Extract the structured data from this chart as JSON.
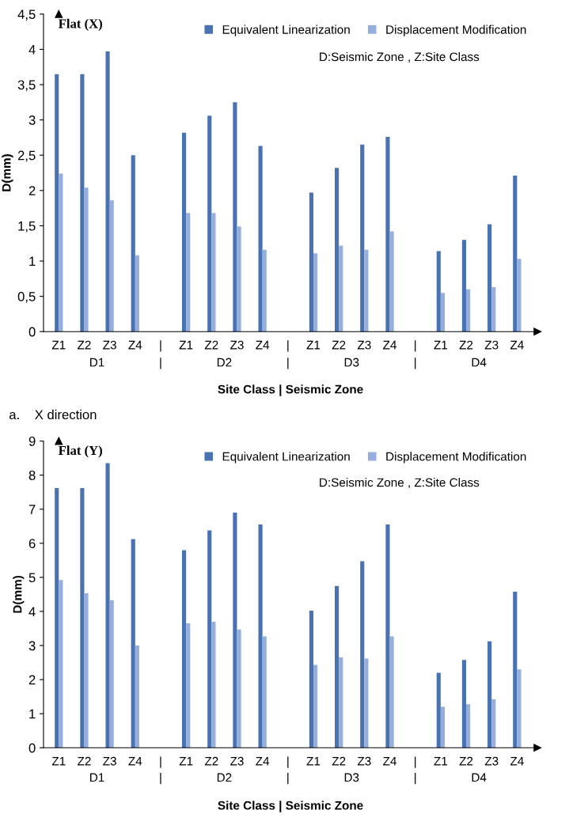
{
  "chart_data": [
    {
      "type": "bar",
      "title": "Flat (X)",
      "subtitle": "D:Seismic Zone , Z:Site Class",
      "xlabel": "Site Class | Seismic Zone",
      "ylabel": "D(mm)",
      "categories": [
        "Z1",
        "Z2",
        "Z3",
        "Z4",
        "|",
        "Z1",
        "Z2",
        "Z3",
        "Z4",
        "|",
        "Z1",
        "Z2",
        "Z3",
        "Z4",
        "|",
        "Z1",
        "Z2",
        "Z3",
        "Z4"
      ],
      "series": [
        {
          "name": "Equivalent Linearization",
          "color": "#4a72b0",
          "values": [
            3.65,
            3.65,
            3.97,
            2.5,
            null,
            2.82,
            3.06,
            3.25,
            2.63,
            null,
            1.97,
            2.32,
            2.65,
            2.76,
            null,
            1.14,
            1.3,
            1.52,
            2.21
          ]
        },
        {
          "name": "Displacement Modification",
          "color": "#95aedb",
          "values": [
            2.24,
            2.04,
            1.86,
            1.08,
            null,
            1.68,
            1.68,
            1.49,
            1.16,
            null,
            1.11,
            1.22,
            1.16,
            1.42,
            null,
            0.55,
            0.6,
            0.63,
            1.03
          ]
        }
      ],
      "ylim": [
        0,
        4.5
      ],
      "yticks": [
        0,
        {
          "value": 0.5,
          "label": "0,5"
        },
        1,
        {
          "value": 1.5,
          "label": "1,5"
        },
        2,
        {
          "value": 2.5,
          "label": "2,5"
        },
        3,
        {
          "value": 3.5,
          "label": "3,5"
        },
        4,
        {
          "value": 4.5,
          "label": "4,5"
        }
      ],
      "grid": false,
      "legend": "top right",
      "annotations": [
        "D1",
        "|",
        "D2",
        "|",
        "D3",
        "|",
        "D4",
        "a.    X direction"
      ]
    },
    {
      "type": "bar",
      "title": "Flat (Y)",
      "subtitle": "D:Seismic Zone , Z:Site Class",
      "xlabel": "Site Class | Seismic Zone",
      "ylabel": "D(mm)",
      "categories": [
        "Z1",
        "Z2",
        "Z3",
        "Z4",
        "|",
        "Z1",
        "Z2",
        "Z3",
        "Z4",
        "|",
        "Z1",
        "Z2",
        "Z3",
        "Z4",
        "|",
        "Z1",
        "Z2",
        "Z3",
        "Z4"
      ],
      "series": [
        {
          "name": "Equivalent Linearization",
          "color": "#4a72b0",
          "values": [
            7.62,
            7.62,
            8.35,
            6.12,
            null,
            5.8,
            6.38,
            6.9,
            6.55,
            null,
            4.02,
            4.75,
            5.47,
            6.55,
            null,
            2.2,
            2.58,
            3.12,
            4.58
          ]
        },
        {
          "name": "Displacement Modification",
          "color": "#95aedb",
          "values": [
            4.92,
            4.53,
            4.33,
            3.0,
            null,
            3.65,
            3.7,
            3.47,
            3.27,
            null,
            2.43,
            2.65,
            2.62,
            3.27,
            null,
            1.2,
            1.28,
            1.42,
            2.3
          ]
        }
      ],
      "ylim": [
        0,
        9
      ],
      "yticks": [
        0,
        1,
        2,
        3,
        4,
        5,
        6,
        7,
        8,
        9
      ],
      "grid": false,
      "legend": "top right",
      "annotations": [
        "D1",
        "|",
        "D2",
        "|",
        "D3",
        "|",
        "D4"
      ]
    }
  ]
}
